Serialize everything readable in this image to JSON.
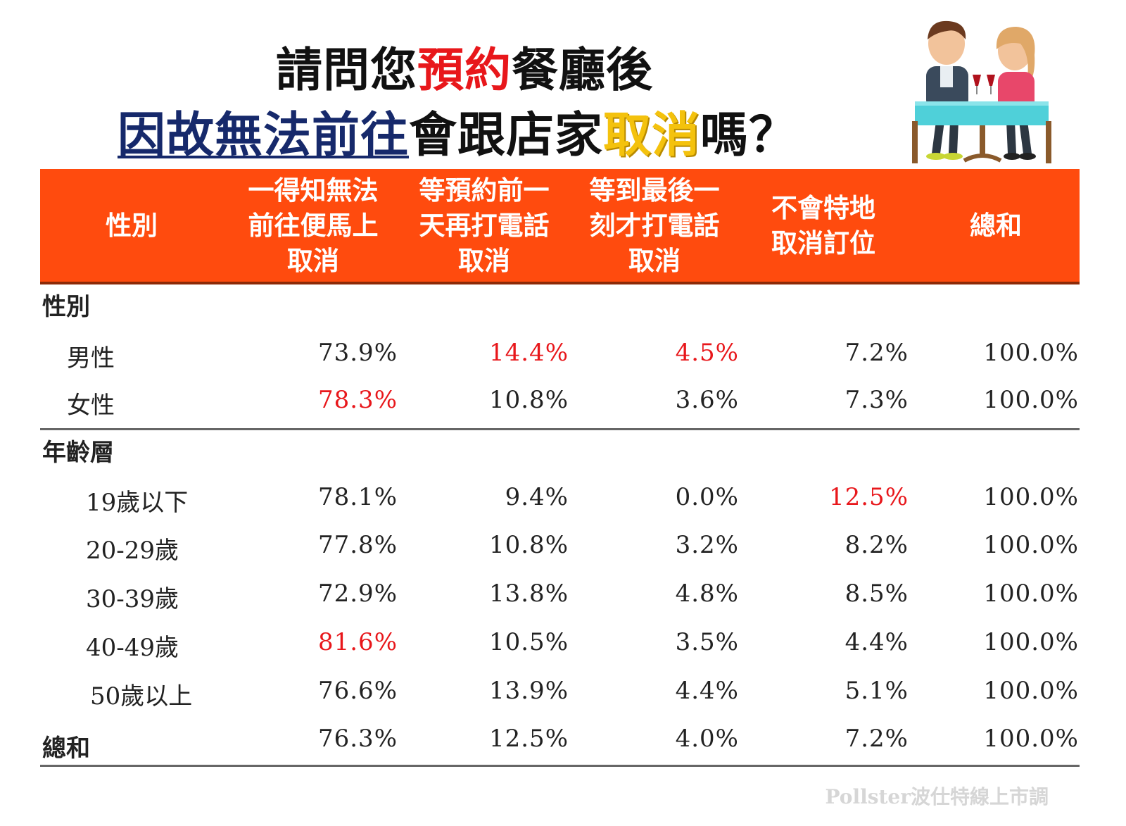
{
  "title": {
    "line1": [
      {
        "text": "請問您",
        "style": "black"
      },
      {
        "text": "預約",
        "style": "red"
      },
      {
        "text": "餐廳後",
        "style": "black"
      }
    ],
    "line2": [
      {
        "text": "因故無法前往",
        "style": "navy"
      },
      {
        "text": "會跟店家",
        "style": "black"
      },
      {
        "text": "取消",
        "style": "yellow"
      },
      {
        "text": "嗎？",
        "style": "black"
      }
    ]
  },
  "colors": {
    "header_band": "#ff4b0e",
    "highlight": "#e8171b",
    "title_navy": "#16296b",
    "title_yellow": "#f4c20d"
  },
  "illustration": "couple-dining-icon",
  "chart_data": {
    "type": "table",
    "columns": [
      "性別",
      "一得知無法\n前往便馬上\n取消",
      "等預約前一\n天再打電話\n取消",
      "等到最後一\n刻才打電話\n取消",
      "不會特地\n取消訂位",
      "總和"
    ],
    "sections": [
      {
        "label": "性別",
        "rows": [
          {
            "label": "男性",
            "values": [
              "73.9%",
              "14.4%",
              "4.5%",
              "7.2%",
              "100.0%"
            ],
            "highlight": [
              1,
              2
            ]
          },
          {
            "label": "女性",
            "values": [
              "78.3%",
              "10.8%",
              "3.6%",
              "7.3%",
              "100.0%"
            ],
            "highlight": [
              0
            ]
          }
        ]
      },
      {
        "label": "年齡層",
        "rows": [
          {
            "label": "19歲以下",
            "values": [
              "78.1%",
              "9.4%",
              "0.0%",
              "12.5%",
              "100.0%"
            ],
            "highlight": [
              3
            ]
          },
          {
            "label": "20-29歲",
            "values": [
              "77.8%",
              "10.8%",
              "3.2%",
              "8.2%",
              "100.0%"
            ],
            "highlight": []
          },
          {
            "label": "30-39歲",
            "values": [
              "72.9%",
              "13.8%",
              "4.8%",
              "8.5%",
              "100.0%"
            ],
            "highlight": []
          },
          {
            "label": "40-49歲",
            "values": [
              "81.6%",
              "10.5%",
              "3.5%",
              "4.4%",
              "100.0%"
            ],
            "highlight": [
              0
            ]
          },
          {
            "label": "50歲以上",
            "values": [
              "76.6%",
              "13.9%",
              "4.4%",
              "5.1%",
              "100.0%"
            ],
            "highlight": []
          }
        ]
      }
    ],
    "total": {
      "label": "總和",
      "values": [
        "76.3%",
        "12.5%",
        "4.0%",
        "7.2%",
        "100.0%"
      ]
    }
  },
  "footer": "Pollster波仕特線上市調"
}
